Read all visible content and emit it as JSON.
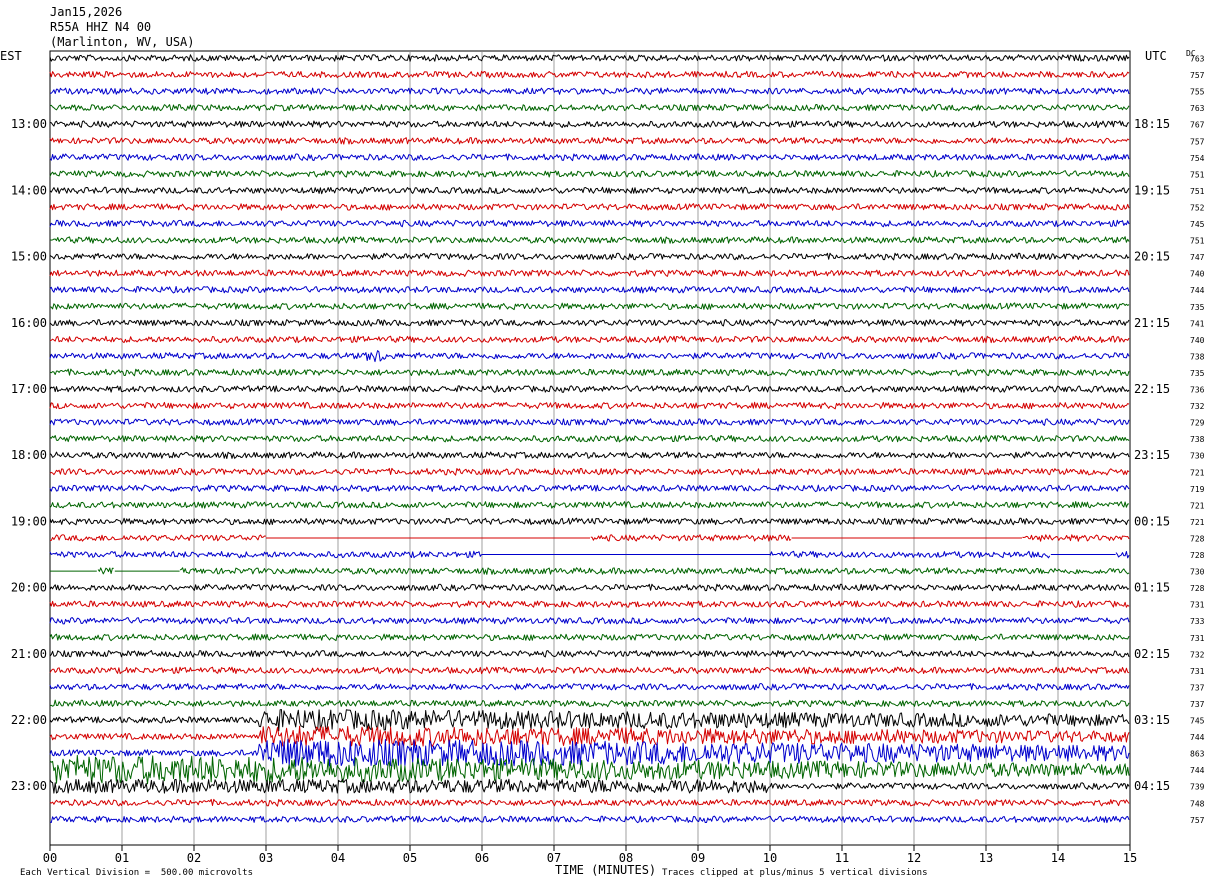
{
  "header": {
    "date": "Jan15,2026",
    "station": "R55A HHZ N4 00",
    "location": "(Marlinton, WV, USA)"
  },
  "axes": {
    "left_zone": "EST",
    "right_zone": "UTC",
    "dc_label": "DC",
    "x_title": "TIME (MINUTES)"
  },
  "footer": {
    "scale_note": "Each Vertical Division =  500.00 microvolts",
    "clip_note": "Traces clipped at plus/minus 5 vertical divisions"
  },
  "colors": {
    "trace_cycle": [
      "#000000",
      "#d40000",
      "#0000cc",
      "#006400"
    ],
    "grid": "#888888"
  },
  "chart_data": {
    "type": "line",
    "title": "",
    "xlabel": "TIME (MINUTES)",
    "x_ticks": [
      "00",
      "01",
      "02",
      "03",
      "04",
      "05",
      "06",
      "07",
      "08",
      "09",
      "10",
      "11",
      "12",
      "13",
      "14",
      "15"
    ],
    "xlim": [
      0,
      15
    ],
    "left_hour_labels": [
      {
        "row": 4,
        "label": "13:00"
      },
      {
        "row": 8,
        "label": "14:00"
      },
      {
        "row": 12,
        "label": "15:00"
      },
      {
        "row": 16,
        "label": "16:00"
      },
      {
        "row": 20,
        "label": "17:00"
      },
      {
        "row": 24,
        "label": "18:00"
      },
      {
        "row": 28,
        "label": "19:00"
      },
      {
        "row": 32,
        "label": "20:00"
      },
      {
        "row": 36,
        "label": "21:00"
      },
      {
        "row": 40,
        "label": "22:00"
      },
      {
        "row": 44,
        "label": "23:00"
      }
    ],
    "right_hour_labels": [
      {
        "row": 4,
        "label": "18:15"
      },
      {
        "row": 8,
        "label": "19:15"
      },
      {
        "row": 12,
        "label": "20:15"
      },
      {
        "row": 16,
        "label": "21:15"
      },
      {
        "row": 20,
        "label": "22:15"
      },
      {
        "row": 24,
        "label": "23:15"
      },
      {
        "row": 28,
        "label": "00:15"
      },
      {
        "row": 32,
        "label": "01:15"
      },
      {
        "row": 36,
        "label": "02:15"
      },
      {
        "row": 40,
        "label": "03:15"
      },
      {
        "row": 44,
        "label": "04:15"
      }
    ],
    "dc_offsets": [
      "763",
      "757",
      "755",
      "763",
      "767",
      "757",
      "754",
      "751",
      "751",
      "752",
      "745",
      "751",
      "747",
      "740",
      "744",
      "735",
      "741",
      "740",
      "738",
      "735",
      "736",
      "732",
      "729",
      "738",
      "730",
      "721",
      "719",
      "721",
      "721",
      "728",
      "728",
      "730",
      "728",
      "731",
      "733",
      "731",
      "732",
      "731",
      "737",
      "737",
      "745",
      "744",
      "863",
      "744",
      "739",
      "748",
      "757"
    ],
    "events": [
      {
        "row": 18,
        "start_min": 4.4,
        "end_min": 4.65,
        "amplitude": "moderate"
      },
      {
        "row": 40,
        "start_min": 2.9,
        "end_min": 15,
        "amplitude": "large"
      },
      {
        "row": 41,
        "start_min": 2.9,
        "end_min": 15,
        "amplitude": "large"
      },
      {
        "row": 42,
        "start_min": 2.9,
        "end_min": 15,
        "amplitude": "large"
      },
      {
        "row": 43,
        "start_min": 0,
        "end_min": 15,
        "amplitude": "large"
      },
      {
        "row": 44,
        "start_min": 0,
        "end_min": 10,
        "amplitude": "moderate"
      }
    ],
    "gaps": [
      {
        "row": 29,
        "segments": [
          [
            3.0,
            7.5
          ],
          [
            10.3,
            13.5
          ]
        ]
      },
      {
        "row": 30,
        "segments": [
          [
            6.0,
            10.0
          ],
          [
            13.9,
            14.8
          ]
        ]
      },
      {
        "row": 31,
        "segments": [
          [
            0.0,
            0.65
          ],
          [
            0.9,
            1.8
          ]
        ]
      }
    ]
  }
}
